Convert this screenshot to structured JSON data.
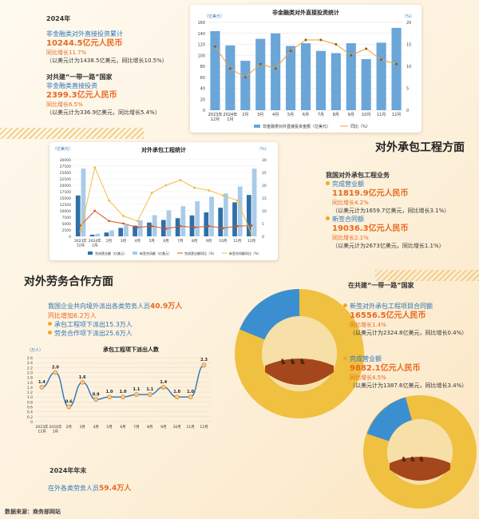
{
  "year": "2024年",
  "fdi": {
    "label": "非金融类对外直接投资累计",
    "value": "10244.5亿元人民币",
    "growth": "同比增长11.7%",
    "usd": "（以美元计为1438.5亿美元，同比增长10.5%）",
    "br_title": "对共建“一带一路”国家",
    "br_label": "非金融类直接投资",
    "br_value": "2399.3亿元人民币",
    "br_growth": "同比增长6.5%",
    "br_usd": "（以美元计为336.9亿美元，同比增长5.4%）"
  },
  "sections": {
    "contract": "对外承包工程方面",
    "labor": "对外劳务合作方面"
  },
  "contract": {
    "heading": "我国对外承包工程业务",
    "rev_label": "完成营业额",
    "rev_value": "11819.9亿元人民币",
    "rev_growth": "同比增长4.2%",
    "rev_usd": "（以美元计为1659.7亿美元，同比增长3.1%）",
    "new_label": "新签合同额",
    "new_value": "19036.3亿元人民币",
    "new_growth": "同比增长2.1%",
    "new_usd": "（以美元计为2673亿美元，同比增长1.1%）"
  },
  "labor": {
    "line1_pre": "我国企业共向境外派出各类劳务人员",
    "line1_val": "40.9万人",
    "line2": "同比增加6.2万人",
    "b1": "承包工程项下派出15.3万人",
    "b2": "劳务合作项下派出25.6万人",
    "yearend": "2024年年末",
    "abroad_pre": "在外各类劳务人员",
    "abroad_val": "59.4万人",
    "source": "数据来源：商务部网站"
  },
  "br": {
    "heading": "在共建“一带一路”国家",
    "new_label": "新签对外承包工程项目合同额",
    "new_value": "16556.5亿元人民币",
    "new_growth": "同比增长1.4%",
    "new_usd": "（以美元计为2324.8亿美元，同比增长0.4%）",
    "rev_label": "完成营业额",
    "rev_value": "9882.1亿元人民币",
    "rev_growth": "同比增长4.5%",
    "rev_usd": "（以美元计为1387.6亿美元，同比增长3.4%）"
  },
  "colors": {
    "blue": "#5b9bd5",
    "dark_blue": "#2f6fa8",
    "light_blue": "#a9cbe8",
    "gold": "#f0c040",
    "orange": "#e8681e"
  },
  "chart_data": [
    {
      "type": "bar",
      "title": "非金融类对外直接投资统计",
      "y_unit_left": "（亿美元）",
      "y_unit_right": "（%）",
      "categories": [
        "2023年\n12月",
        "2024年\n1月",
        "2月",
        "3月",
        "4月",
        "5月",
        "6月",
        "7月",
        "8月",
        "9月",
        "10月",
        "11月",
        "12月"
      ],
      "ylim": [
        0,
        160
      ],
      "yticks": [
        0,
        20,
        40,
        60,
        80,
        100,
        120,
        140,
        160
      ],
      "ylim_right": [
        0,
        20
      ],
      "yticks_right": [
        0,
        5,
        10,
        15,
        20
      ],
      "series": [
        {
          "name": "非金融类对外直接投资金额（亿美元）",
          "type": "bar",
          "axis": "left",
          "values": [
            144,
            118,
            90,
            130,
            140,
            117,
            122,
            108,
            104,
            122,
            93,
            123,
            150
          ]
        },
        {
          "name": "同比（%）",
          "type": "line",
          "axis": "right",
          "values": [
            14.5,
            9.5,
            7.5,
            10.5,
            9.5,
            13.5,
            16,
            16,
            15,
            12.5,
            14,
            11.5,
            10.5
          ]
        }
      ]
    },
    {
      "type": "bar",
      "title": "对外承包工程统计",
      "y_unit_left": "（亿美元）",
      "y_unit_right": "（%）",
      "categories": [
        "2023年\n12月",
        "2024年\n1月",
        "2月",
        "3月",
        "4月",
        "5月",
        "6月",
        "7月",
        "8月",
        "9月",
        "10月",
        "11月",
        "12月"
      ],
      "ylim": [
        0,
        30000
      ],
      "yticks": [
        0,
        2500,
        5000,
        7500,
        10000,
        12500,
        15000,
        17500,
        20000,
        22500,
        25000,
        27500,
        30000
      ],
      "ylim_right": [
        0,
        30
      ],
      "yticks_right": [
        0,
        5,
        10,
        15,
        20,
        25,
        30
      ],
      "series": [
        {
          "name": "完成营业额（亿美元）",
          "type": "bar",
          "axis": "left",
          "values": [
            16000,
            650,
            1500,
            3300,
            4200,
            5400,
            6400,
            7100,
            8200,
            9400,
            11200,
            13300,
            16200
          ]
        },
        {
          "name": "新签合同额（亿美元）",
          "type": "bar",
          "axis": "left",
          "values": [
            26500,
            1000,
            2300,
            4400,
            6300,
            8300,
            10200,
            11800,
            13700,
            15500,
            16800,
            19500,
            26500
          ]
        },
        {
          "name": "完成营业额同比（%）",
          "type": "line",
          "axis": "right",
          "values": [
            4.2,
            10,
            6,
            5,
            3.5,
            4,
            3,
            4,
            3.5,
            4,
            3.2,
            4,
            4.2
          ]
        },
        {
          "name": "新签合同额同比（%）",
          "type": "line",
          "axis": "right",
          "values": [
            2,
            27,
            14,
            8,
            6,
            17,
            20,
            22,
            19,
            18,
            16,
            14,
            1
          ]
        }
      ]
    },
    {
      "type": "line",
      "title": "承包工程项下派出人数",
      "y_unit_left": "（万人）",
      "categories": [
        "2023年\n12月",
        "2024年\n1月",
        "2月",
        "3月",
        "4月",
        "5月",
        "6月",
        "7月",
        "8月",
        "9月",
        "10月",
        "11月",
        "12月"
      ],
      "ylim": [
        0,
        2.6
      ],
      "yticks": [
        0,
        0.2,
        0.4,
        0.6,
        0.8,
        1.0,
        1.2,
        1.4,
        1.6,
        1.8,
        2.0,
        2.2,
        2.4,
        2.6
      ],
      "series": [
        {
          "name": "承包工程项下派出人数",
          "type": "line",
          "values": [
            1.4,
            2.0,
            0.6,
            1.6,
            0.9,
            1.0,
            1.0,
            1.1,
            1.1,
            1.4,
            1.0,
            1.0,
            2.3
          ]
        }
      ]
    }
  ]
}
